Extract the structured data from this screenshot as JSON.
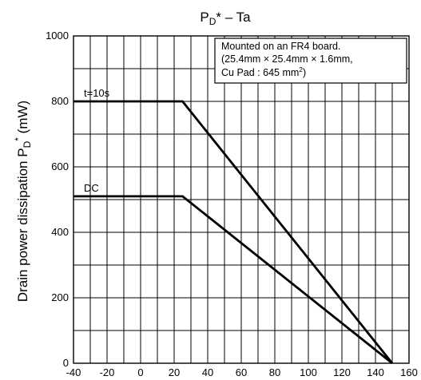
{
  "chart_data": {
    "type": "line",
    "title": {
      "main": "P",
      "sub": "D",
      "rest": "* – Ta"
    },
    "ylabel": {
      "main": "Drain power dissipation",
      "unit": "(mW)",
      "sym": "P",
      "sym_sub": "D",
      "sym_sup": "*"
    },
    "xlabel": "",
    "xlim": [
      -40,
      160
    ],
    "ylim": [
      0,
      1000
    ],
    "xticks": [
      -40,
      -20,
      0,
      20,
      40,
      60,
      80,
      100,
      120,
      140,
      160
    ],
    "yticks": [
      0,
      200,
      400,
      600,
      800,
      1000
    ],
    "x_minor_step": 10,
    "y_minor_step": 100,
    "grid": true,
    "series": [
      {
        "name": "t=10s",
        "x": [
          -40,
          25,
          150
        ],
        "y": [
          800,
          800,
          0
        ]
      },
      {
        "name": "DC",
        "x": [
          -40,
          25,
          150
        ],
        "y": [
          510,
          510,
          0
        ]
      }
    ],
    "annotation": {
      "line1": "Mounted on an FR4 board.",
      "line2": "(25.4mm × 25.4mm × 1.6mm,",
      "line3_main": "Cu Pad : 645 mm",
      "line3_sup": "2",
      "line3_end": ")"
    },
    "colors": {
      "line": "#000000",
      "grid": "#000000",
      "background": "#ffffff"
    }
  }
}
